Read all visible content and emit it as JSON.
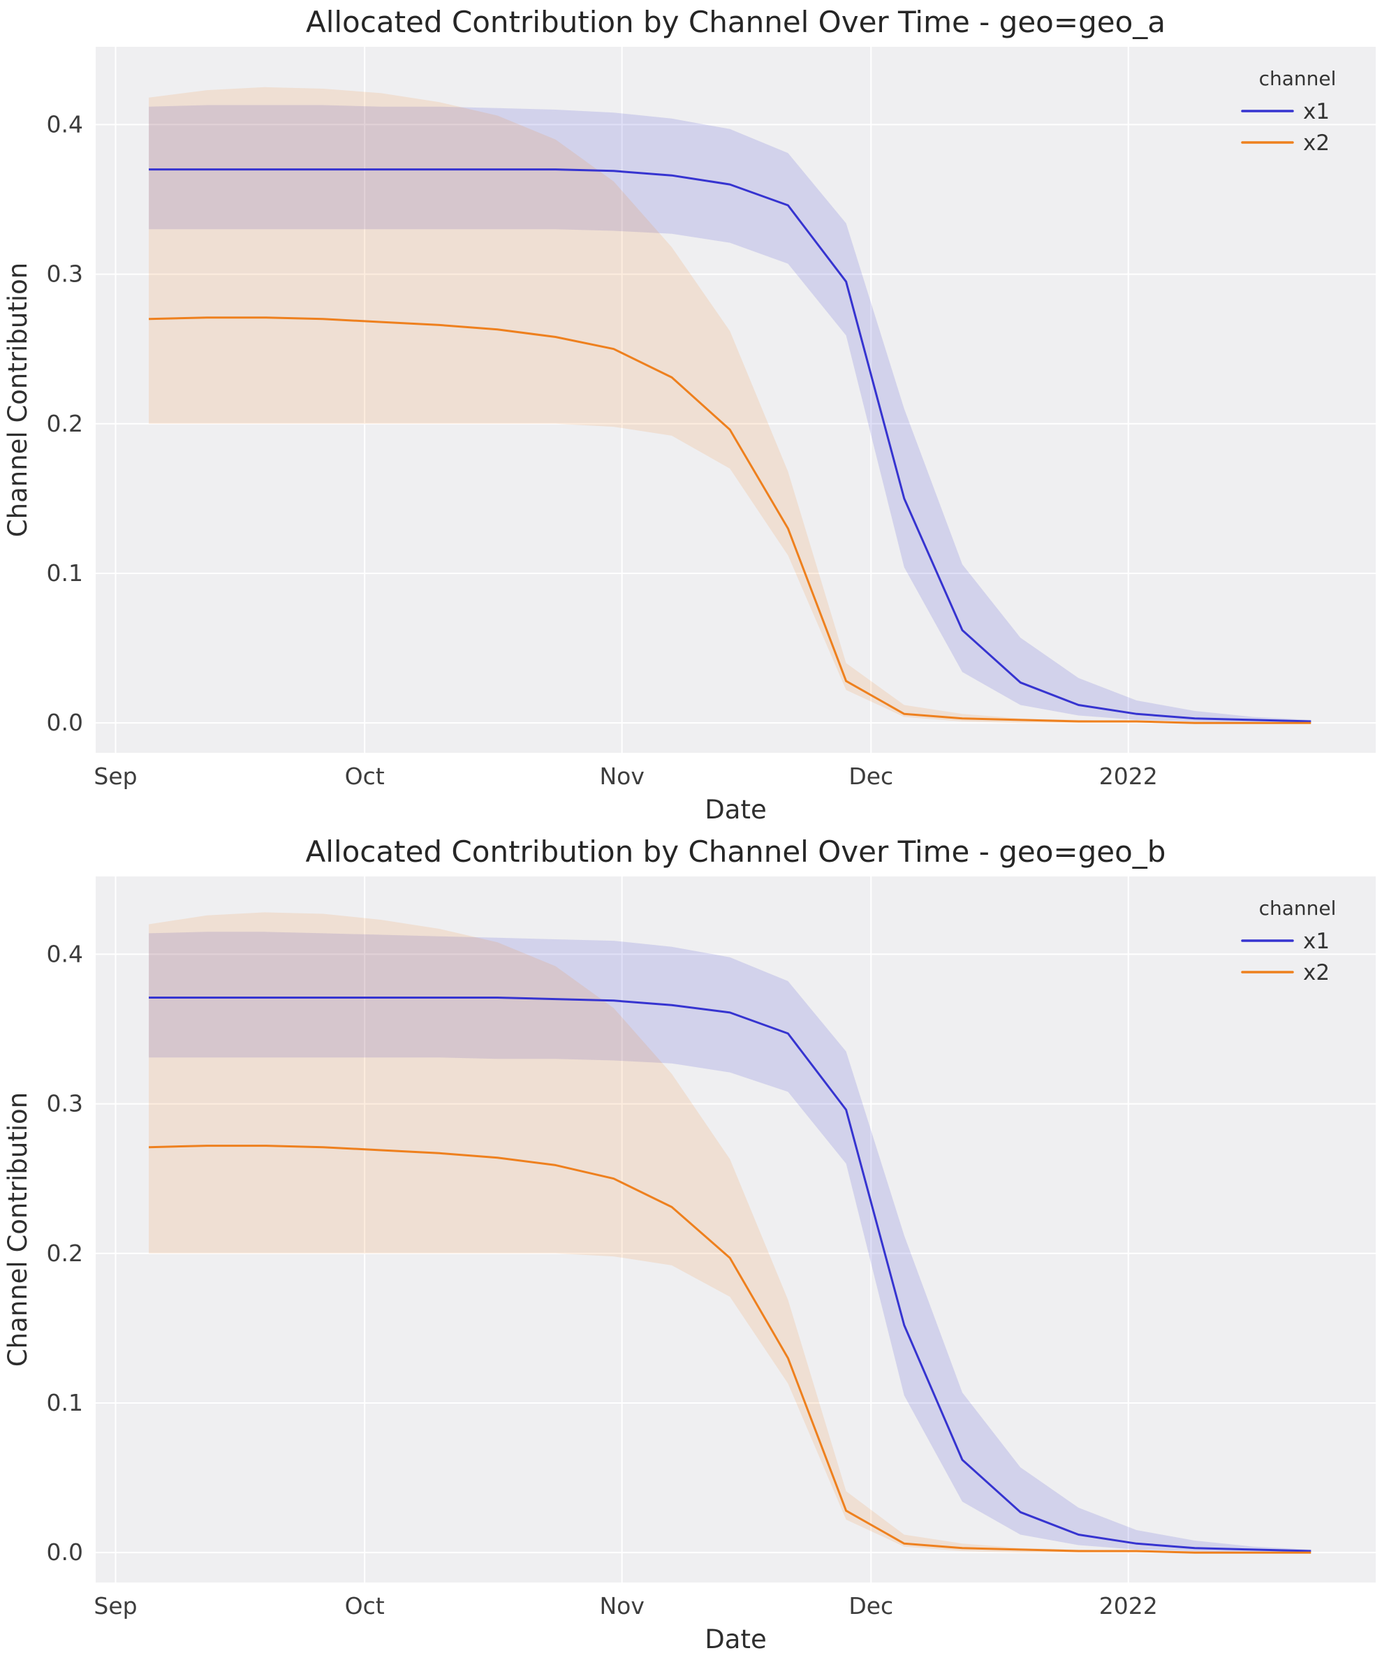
{
  "page": {
    "background": "#ffffff",
    "plot_background": "#efeff1",
    "grid_color": "#ffffff"
  },
  "chart_data": [
    {
      "type": "line",
      "title": "Allocated Contribution by Channel Over Time - geo=geo_a",
      "xlabel": "Date",
      "ylabel": "Channel Contribution",
      "legend_title": "channel",
      "legend_position": "upper right",
      "grid": true,
      "plot_bg": "#efeff1",
      "x_tick_labels": [
        "Sep",
        "Oct",
        "Nov",
        "Dec",
        "2022"
      ],
      "x_tick_pos": [
        0,
        30,
        61,
        91,
        122
      ],
      "y_ticks": [
        0.0,
        0.1,
        0.2,
        0.3,
        0.4
      ],
      "xlim": [
        -2.4,
        151.8
      ],
      "ylim": [
        -0.02,
        0.452
      ],
      "x_days": [
        4,
        11,
        18,
        25,
        32,
        39,
        46,
        53,
        60,
        67,
        74,
        81,
        88,
        95,
        102,
        109,
        116,
        123,
        130,
        137,
        144
      ],
      "series": [
        {
          "name": "x1",
          "color": "#3634d0",
          "band_color": "rgba(62,60,208,0.16)",
          "values": [
            0.37,
            0.37,
            0.37,
            0.37,
            0.37,
            0.37,
            0.37,
            0.37,
            0.369,
            0.366,
            0.36,
            0.346,
            0.295,
            0.15,
            0.062,
            0.027,
            0.012,
            0.006,
            0.003,
            0.002,
            0.001
          ],
          "lower": [
            0.33,
            0.33,
            0.33,
            0.33,
            0.33,
            0.33,
            0.33,
            0.33,
            0.329,
            0.327,
            0.321,
            0.307,
            0.259,
            0.104,
            0.034,
            0.012,
            0.005,
            0.002,
            0.001,
            0.0,
            0.0
          ],
          "upper": [
            0.412,
            0.413,
            0.413,
            0.413,
            0.412,
            0.412,
            0.411,
            0.41,
            0.408,
            0.404,
            0.397,
            0.381,
            0.334,
            0.21,
            0.106,
            0.057,
            0.03,
            0.015,
            0.008,
            0.004,
            0.002
          ]
        },
        {
          "name": "x2",
          "color": "#ee801e",
          "band_color": "rgba(238,128,30,0.14)",
          "values": [
            0.27,
            0.271,
            0.271,
            0.27,
            0.268,
            0.266,
            0.263,
            0.258,
            0.25,
            0.231,
            0.196,
            0.13,
            0.028,
            0.006,
            0.003,
            0.002,
            0.001,
            0.001,
            0.0,
            0.0,
            0.0
          ],
          "lower": [
            0.2,
            0.2,
            0.2,
            0.2,
            0.2,
            0.2,
            0.2,
            0.2,
            0.198,
            0.192,
            0.17,
            0.112,
            0.022,
            0.004,
            0.001,
            0.0,
            0.0,
            0.0,
            0.0,
            0.0,
            0.0
          ],
          "upper": [
            0.418,
            0.423,
            0.425,
            0.424,
            0.421,
            0.415,
            0.406,
            0.39,
            0.362,
            0.318,
            0.262,
            0.168,
            0.04,
            0.012,
            0.006,
            0.003,
            0.002,
            0.001,
            0.001,
            0.0,
            0.0
          ]
        }
      ]
    },
    {
      "type": "line",
      "title": "Allocated Contribution by Channel Over Time - geo=geo_b",
      "xlabel": "Date",
      "ylabel": "Channel Contribution",
      "legend_title": "channel",
      "legend_position": "upper right",
      "grid": true,
      "plot_bg": "#efeff1",
      "x_tick_labels": [
        "Sep",
        "Oct",
        "Nov",
        "Dec",
        "2022"
      ],
      "x_tick_pos": [
        0,
        30,
        61,
        91,
        122
      ],
      "y_ticks": [
        0.0,
        0.1,
        0.2,
        0.3,
        0.4
      ],
      "xlim": [
        -2.4,
        151.8
      ],
      "ylim": [
        -0.02,
        0.452
      ],
      "x_days": [
        4,
        11,
        18,
        25,
        32,
        39,
        46,
        53,
        60,
        67,
        74,
        81,
        88,
        95,
        102,
        109,
        116,
        123,
        130,
        137,
        144
      ],
      "series": [
        {
          "name": "x1",
          "color": "#3634d0",
          "band_color": "rgba(62,60,208,0.16)",
          "values": [
            0.371,
            0.371,
            0.371,
            0.371,
            0.371,
            0.371,
            0.371,
            0.37,
            0.369,
            0.366,
            0.361,
            0.347,
            0.296,
            0.152,
            0.062,
            0.027,
            0.012,
            0.006,
            0.003,
            0.002,
            0.001
          ],
          "lower": [
            0.331,
            0.331,
            0.331,
            0.331,
            0.331,
            0.331,
            0.33,
            0.33,
            0.329,
            0.327,
            0.321,
            0.308,
            0.26,
            0.105,
            0.034,
            0.012,
            0.005,
            0.002,
            0.001,
            0.0,
            0.0
          ],
          "upper": [
            0.414,
            0.415,
            0.415,
            0.414,
            0.413,
            0.412,
            0.411,
            0.41,
            0.409,
            0.405,
            0.398,
            0.382,
            0.335,
            0.212,
            0.107,
            0.057,
            0.03,
            0.015,
            0.008,
            0.004,
            0.002
          ]
        },
        {
          "name": "x2",
          "color": "#ee801e",
          "band_color": "rgba(238,128,30,0.14)",
          "values": [
            0.271,
            0.272,
            0.272,
            0.271,
            0.269,
            0.267,
            0.264,
            0.259,
            0.25,
            0.231,
            0.197,
            0.13,
            0.028,
            0.006,
            0.003,
            0.002,
            0.001,
            0.001,
            0.0,
            0.0,
            0.0
          ],
          "lower": [
            0.2,
            0.2,
            0.2,
            0.2,
            0.2,
            0.2,
            0.2,
            0.2,
            0.198,
            0.192,
            0.171,
            0.113,
            0.022,
            0.004,
            0.001,
            0.0,
            0.0,
            0.0,
            0.0,
            0.0,
            0.0
          ],
          "upper": [
            0.42,
            0.426,
            0.428,
            0.427,
            0.423,
            0.417,
            0.408,
            0.392,
            0.364,
            0.32,
            0.263,
            0.169,
            0.041,
            0.012,
            0.006,
            0.003,
            0.002,
            0.001,
            0.001,
            0.0,
            0.0
          ]
        }
      ]
    }
  ]
}
